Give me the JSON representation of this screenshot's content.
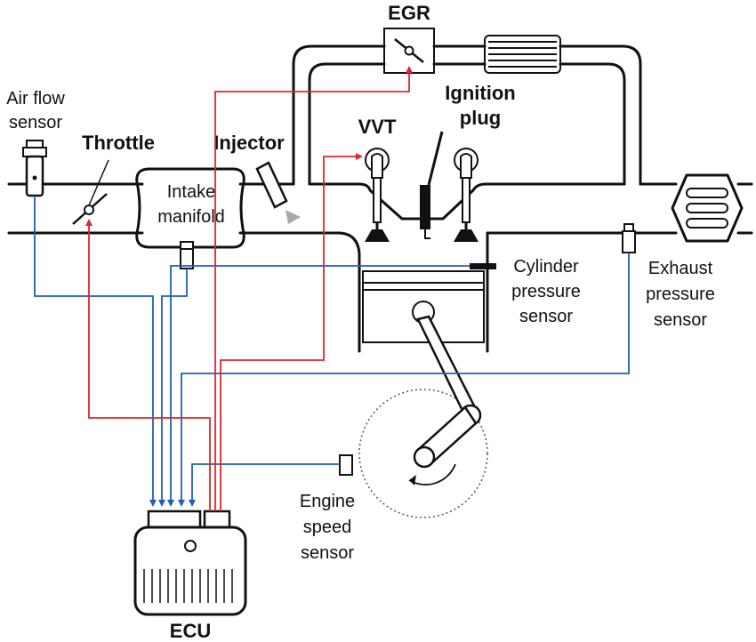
{
  "labels": {
    "egr": "EGR",
    "air_flow_line1": "Air flow",
    "air_flow_line2": "sensor",
    "throttle": "Throttle",
    "injector": "Injector",
    "intake_line1": "Intake",
    "intake_line2": "manifold",
    "vvt": "VVT",
    "ignition_line1": "Ignition",
    "ignition_line2": "plug",
    "cylinder_line1": "Cylinder",
    "cylinder_line2": "pressure",
    "cylinder_line3": "sensor",
    "exhaust_line1": "Exhaust",
    "exhaust_line2": "pressure",
    "exhaust_line3": "sensor",
    "engine_speed_line1": "Engine",
    "engine_speed_line2": "speed",
    "engine_speed_line3": "sensor",
    "ecu": "ECU"
  },
  "colors": {
    "sensor_signal": "#1f5fb4",
    "actuator_signal": "#e0262b",
    "outline": "#111111"
  }
}
